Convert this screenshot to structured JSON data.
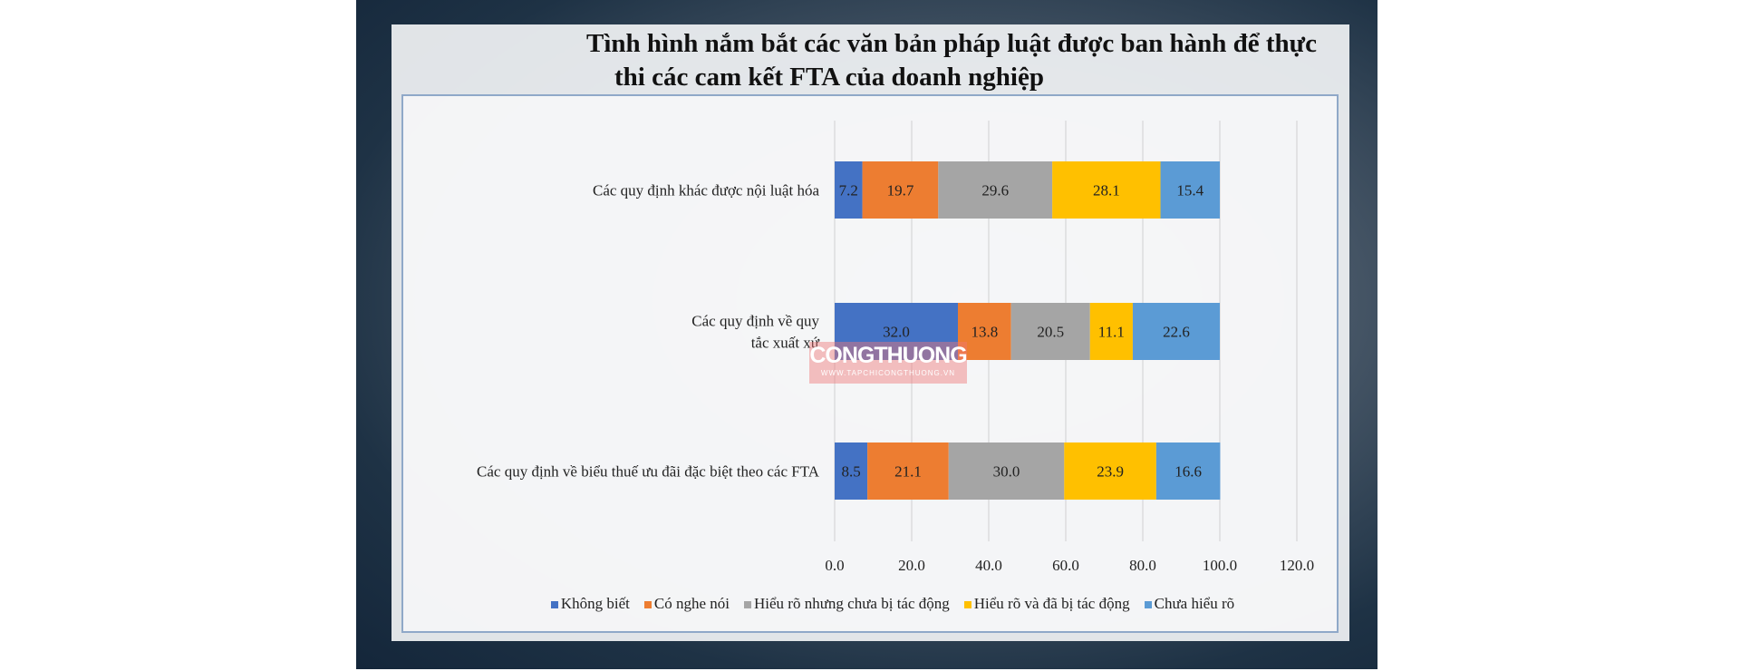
{
  "chart_data": {
    "type": "bar",
    "orientation": "horizontal-stacked",
    "title": [
      "Tình hình nắm bắt các văn bản pháp luật được ban hành để thực",
      "thi các cam kết FTA của doanh nghiệp"
    ],
    "categories": [
      [
        "Các quy định khác được nội luật hóa"
      ],
      [
        "Các quy định về quy",
        "tắc xuất xứ"
      ],
      [
        "Các quy định về biểu thuế ưu đãi đặc biệt theo các FTA"
      ]
    ],
    "series": [
      {
        "name": "Không biết",
        "color": "#4472C4",
        "values": [
          7.2,
          32.0,
          8.5
        ],
        "labels": [
          "7.2",
          "32.0",
          "8.5"
        ]
      },
      {
        "name": "Có nghe nói",
        "color": "#ED7D31",
        "values": [
          19.7,
          13.8,
          21.1
        ],
        "labels": [
          "19.7",
          "13.8",
          "21.1"
        ]
      },
      {
        "name": "Hiểu rõ nhưng chưa bị tác động",
        "color": "#A5A5A5",
        "values": [
          29.6,
          20.5,
          30.0
        ],
        "labels": [
          "29.6",
          "20.5",
          "30.0"
        ]
      },
      {
        "name": "Hiểu rõ và đã bị tác động",
        "color": "#FFC000",
        "values": [
          28.1,
          11.1,
          23.9
        ],
        "labels": [
          "28.1",
          "11.1",
          "23.9"
        ]
      },
      {
        "name": "Chưa hiểu rõ",
        "color": "#5B9BD5",
        "values": [
          15.4,
          22.6,
          16.6
        ],
        "labels": [
          "15.4",
          "22.6",
          "16.6"
        ]
      }
    ],
    "xlim": [
      0,
      120
    ],
    "xticks": [
      "0.0",
      "20.0",
      "40.0",
      "60.0",
      "80.0",
      "100.0",
      "120.0"
    ],
    "grid": true,
    "legend": "bottom"
  },
  "watermark": {
    "brand": "CONGTHUONG",
    "site": "WWW.TAPCHICONGTHUONG.VN"
  }
}
